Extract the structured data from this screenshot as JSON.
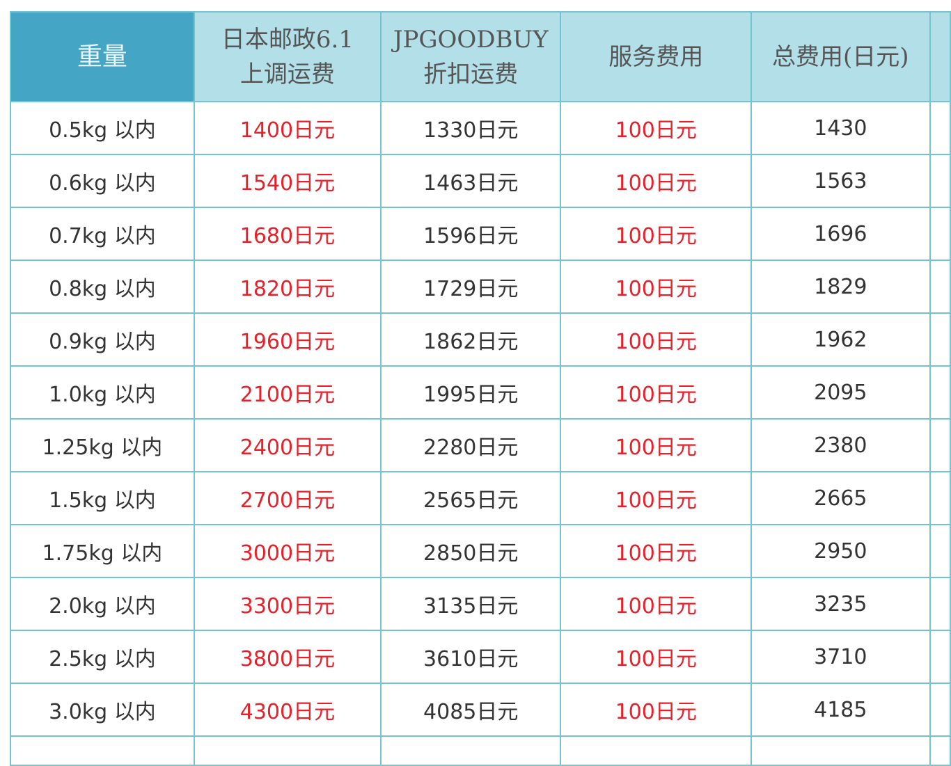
{
  "headers": [
    "重量",
    "日本邮政6.1\n上调运费",
    "JPGOODBUY\n折扣运费",
    "服务费用",
    "总费用(日元)"
  ],
  "header_lines": [
    [
      "重量"
    ],
    [
      "日本邮政6.1",
      "上调运费"
    ],
    [
      "JPGOODBUY",
      "折扣运费"
    ],
    [
      "服务费用"
    ],
    [
      "总费用(日元)"
    ]
  ],
  "colors": {
    "header_primary": "#45a5c4",
    "header_secondary": "#b3dfe9",
    "grid": "#74c3d1",
    "highlight_red": "#e8202a"
  },
  "rows": [
    [
      "0.5kg 以内",
      "1400日元",
      "1330日元",
      "100日元",
      "1430"
    ],
    [
      "0.6kg 以内",
      "1540日元",
      "1463日元",
      "100日元",
      "1563"
    ],
    [
      "0.7kg 以内",
      "1680日元",
      "1596日元",
      "100日元",
      "1696"
    ],
    [
      "0.8kg 以内",
      "1820日元",
      "1729日元",
      "100日元",
      "1829"
    ],
    [
      "0.9kg 以内",
      "1960日元",
      "1862日元",
      "100日元",
      "1962"
    ],
    [
      "1.0kg 以内",
      "2100日元",
      "1995日元",
      "100日元",
      "2095"
    ],
    [
      "1.25kg 以内",
      "2400日元",
      "2280日元",
      "100日元",
      "2380"
    ],
    [
      "1.5kg 以内",
      "2700日元",
      "2565日元",
      "100日元",
      "2665"
    ],
    [
      "1.75kg 以内",
      "3000日元",
      "2850日元",
      "100日元",
      "2950"
    ],
    [
      "2.0kg 以内",
      "3300日元",
      "3135日元",
      "100日元",
      "3235"
    ],
    [
      "2.5kg 以内",
      "3800日元",
      "3610日元",
      "100日元",
      "3710"
    ],
    [
      "3.0kg 以内",
      "4300日元",
      "4085日元",
      "100日元",
      "4185"
    ]
  ]
}
